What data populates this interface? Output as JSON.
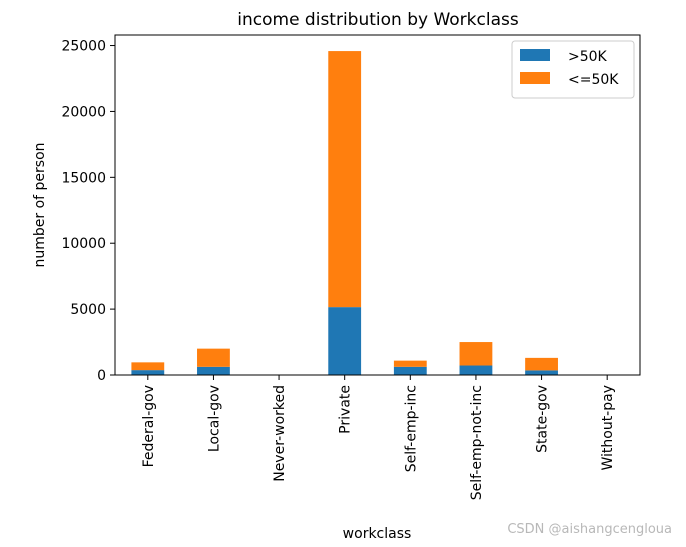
{
  "chart_data": {
    "type": "bar",
    "stacked": true,
    "title": "income distribution by Workclass",
    "xlabel": "workclass",
    "ylabel": "number of person",
    "ylim": [
      0,
      25800
    ],
    "yticks": [
      0,
      5000,
      10000,
      15000,
      20000,
      25000
    ],
    "categories": [
      "Federal-gov",
      "Local-gov",
      "Never-worked",
      "Private",
      "Self-emp-inc",
      "Self-emp-not-inc",
      "State-gov",
      "Without-pay"
    ],
    "series": [
      {
        "name": ">50K",
        "color": "#1f77b4",
        "values": [
          370,
          620,
          0,
          5150,
          620,
          720,
          350,
          0
        ]
      },
      {
        "name": "<=50K",
        "color": "#ff7f0e",
        "values": [
          590,
          1380,
          7,
          19430,
          470,
          1780,
          950,
          14
        ]
      }
    ],
    "grid": false,
    "legend_position": "top-right"
  },
  "watermark": "CSDN @aishangcengloua"
}
